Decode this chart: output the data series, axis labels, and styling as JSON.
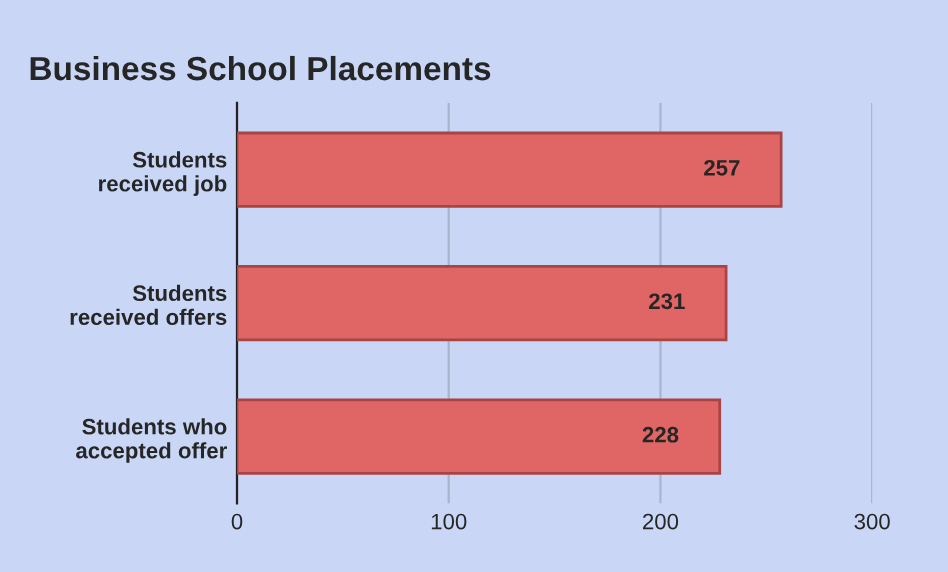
{
  "chart_data": {
    "type": "bar",
    "orientation": "horizontal",
    "title": "Business School Placements",
    "categories": [
      "Students\nreceived job",
      "Students\nreceived offers",
      "Students who\naccepted offer"
    ],
    "values": [
      257,
      231,
      228
    ],
    "color": "#e06666",
    "xlim": [
      0,
      300
    ],
    "xticks": [
      0,
      100,
      200,
      300
    ],
    "grid": "x",
    "data_labels": true
  }
}
